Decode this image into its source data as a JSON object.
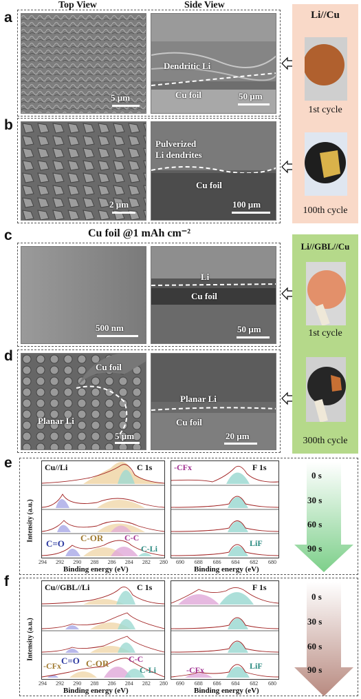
{
  "headers": {
    "top_view": "Top View",
    "side_view": "Side View"
  },
  "panels": {
    "a": {
      "letter": "a",
      "scale_top": "5 µm",
      "scale_side": "50 µm",
      "annot": "Dendritic Li",
      "cu": "Cu foil"
    },
    "b": {
      "letter": "b",
      "scale_top": "2 µm",
      "scale_side": "100 µm",
      "annot_1": "Pulverized",
      "annot_2": "Li dendrites",
      "cu": "Cu foil"
    },
    "c": {
      "letter": "c",
      "title": "Cu foil @1 mAh cm⁻²",
      "scale_top": "500 nm",
      "scale_side": "50 µm",
      "li": "Li",
      "cu": "Cu foil"
    },
    "d": {
      "letter": "d",
      "cu_top": "Cu foil",
      "planar_top": "Planar Li",
      "scale_top": "5 µm",
      "planar_side": "Planar Li",
      "cu_side": "Cu foil",
      "scale_side": "20 µm"
    },
    "e": {
      "letter": "e",
      "c_title": "Cu//Li",
      "c_peak": "C 1s",
      "f_peak": "F 1s",
      "cf": "-CFx",
      "lif": "LiF",
      "co": "C=O",
      "cor": "C-OR",
      "cc": "C-C",
      "cli": "C-Li"
    },
    "f": {
      "letter": "f",
      "c_title": "Cu//GBL//Li",
      "c_peak": "C 1s",
      "f_peak": "F 1s",
      "cf_c": "-CFx",
      "co": "C=O",
      "cor": "C-OR",
      "cc": "C-C",
      "cli": "C-Li",
      "cf": "-CFx",
      "lif": "LiF"
    }
  },
  "side_panels": {
    "top": {
      "title": "Li//Cu",
      "cap1": "1st cycle",
      "cap2": "100th cycle",
      "bg": "#f9d9c8"
    },
    "bottom": {
      "title": "Li//GBL//Cu",
      "cap1": "1st cycle",
      "cap2": "300th cycle",
      "bg": "#b5d98a"
    }
  },
  "xps_axes": {
    "ylabel": "Intensity (a.u.)",
    "c_xlabel": "Binding energy (eV)",
    "f_xlabel": "Binding energy (eV)",
    "c_ticks": [
      "294",
      "292",
      "290",
      "288",
      "286",
      "284",
      "282",
      "280"
    ],
    "f_ticks": [
      "690",
      "688",
      "686",
      "684",
      "682",
      "680"
    ]
  },
  "times": [
    "0 s",
    "30 s",
    "60 s",
    "90 s"
  ],
  "colors": {
    "co": "#2d3aa0",
    "cor": "#a07a30",
    "cc": "#a03090",
    "cli": "#2a8a80",
    "cf": "#a03090",
    "lif": "#2a8a80",
    "arrow_e": "#7dcf8a",
    "arrow_f": "#b88a80"
  }
}
